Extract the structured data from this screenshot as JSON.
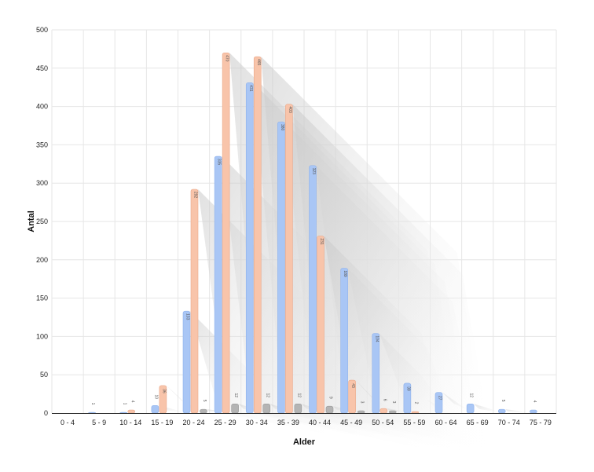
{
  "chart_data": {
    "type": "bar",
    "xlabel": "Alder",
    "ylabel": "Antal",
    "ylim": [
      0,
      500
    ],
    "yticks": [
      0,
      50,
      100,
      150,
      200,
      250,
      300,
      350,
      400,
      450,
      500
    ],
    "grid": true,
    "categories": [
      "0 - 4",
      "5 - 9",
      "10 - 14",
      "15 - 19",
      "20 - 24",
      "25 - 29",
      "30 - 34",
      "35 - 39",
      "40 - 44",
      "45 - 49",
      "50 - 54",
      "55 - 59",
      "60 - 64",
      "65 - 69",
      "70 - 74",
      "75 - 79"
    ],
    "series": [
      {
        "values": [
          0,
          1,
          1,
          10,
          133,
          335,
          431,
          380,
          323,
          189,
          104,
          39,
          27,
          12,
          5,
          4
        ],
        "color": "#a9c6f5"
      },
      {
        "values": [
          0,
          0,
          4,
          36,
          292,
          470,
          465,
          403,
          231,
          43,
          6,
          2,
          0,
          0,
          0,
          0
        ],
        "color": "#f8c4aa"
      },
      {
        "values": [
          0,
          0,
          0,
          0,
          5,
          12,
          12,
          12,
          9,
          3,
          3,
          0,
          0,
          0,
          0,
          0
        ],
        "color": "#b4b4b4"
      }
    ]
  }
}
